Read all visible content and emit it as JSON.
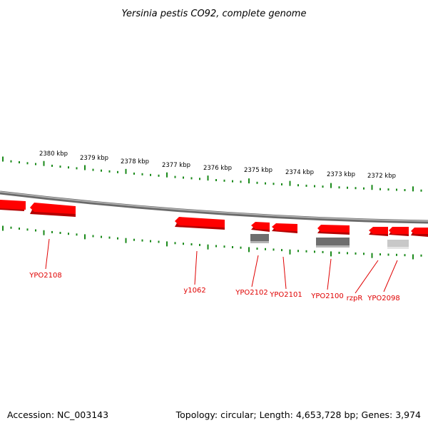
{
  "title": "Yersinia pestis CO92, complete genome",
  "footer": {
    "accession": "Accession: NC_003143",
    "summary": "Topology: circular; Length: 4,653,728 bp; Genes: 3,974"
  },
  "colors": {
    "gene_forward": "#ff0000",
    "gene_shadow": "#b30000",
    "tick": "#1a8a1a",
    "backbone": "#8c8c8c",
    "label": "#e00000",
    "feature_dark": "#6e6e6e",
    "feature_light": "#c8c8c8"
  },
  "scale_labels": [
    "2380 kbp",
    "2379 kbp",
    "2378 kbp",
    "2377 kbp",
    "2376 kbp",
    "2375 kbp",
    "2374 kbp",
    "2373 kbp",
    "2372 kbp"
  ],
  "gene_labels": [
    "YPO2108",
    "y1062",
    "YPO2102",
    "YPO2101",
    "YPO2100",
    "rzpR",
    "YPO2098"
  ]
}
